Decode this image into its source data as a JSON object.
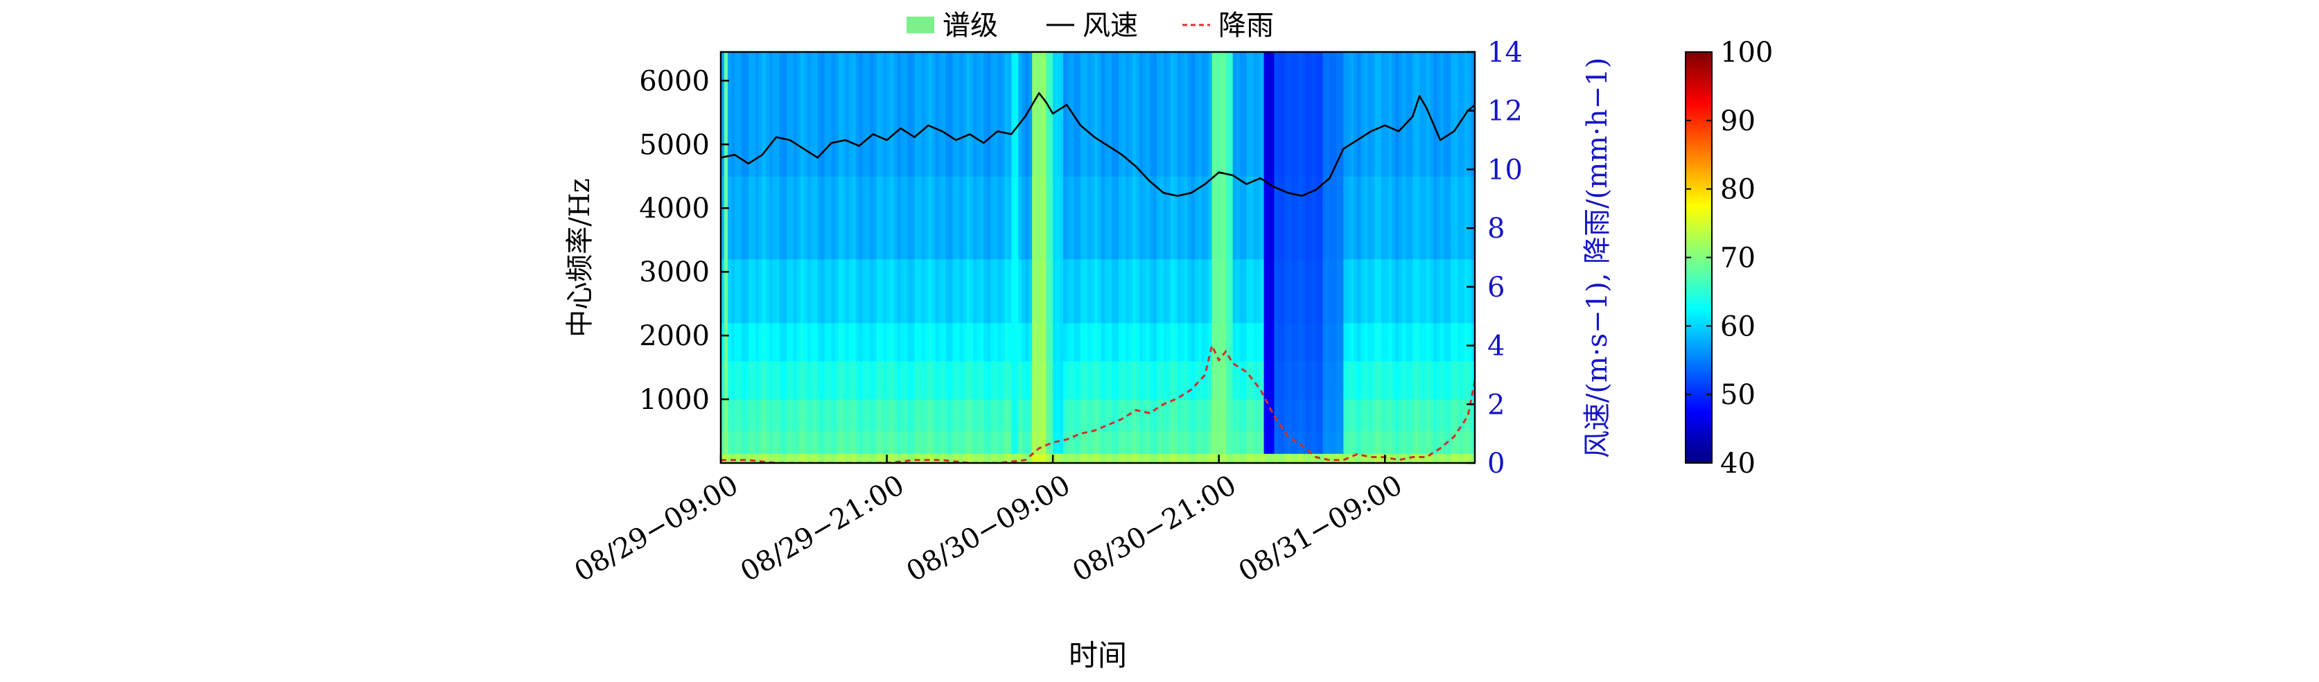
{
  "chart_data": {
    "type": "heatmap",
    "title": "",
    "legend": {
      "placement": "top-center",
      "entries": [
        {
          "label": "谱级",
          "color": "#7CF08A",
          "kind": "patch"
        },
        {
          "label": "风速",
          "color": "#000000",
          "kind": "line"
        },
        {
          "label": "降雨",
          "color": "#E03030",
          "kind": "dashed-line"
        }
      ]
    },
    "xlabel": "时间",
    "ylabel_left": "中心频率/Hz",
    "ylabel_right": "风速/(m·s−1), 降雨/(mm·h−1)",
    "x_tick_labels": [
      "08/29−09:00",
      "08/29−21:00",
      "08/30−09:00",
      "08/30−21:00",
      "08/31−09:00"
    ],
    "x_range_hours": [
      0,
      54.5
    ],
    "y_left_ticks": [
      1000,
      2000,
      3000,
      4000,
      5000,
      6000
    ],
    "ylim_left": [
      0,
      6450
    ],
    "y_right_ticks": [
      0,
      2,
      4,
      6,
      8,
      10,
      12,
      14
    ],
    "ylim_right": [
      0,
      14
    ],
    "colorbar": {
      "ticks": [
        40,
        50,
        60,
        70,
        80,
        90,
        100
      ],
      "range": [
        40,
        100
      ],
      "colormap": "jet"
    },
    "heatmap": {
      "band_boundaries_hz": [
        0,
        150,
        500,
        1000,
        1600,
        2200,
        3200,
        4500,
        6450
      ],
      "base_levels_db": [
        72,
        67,
        66,
        64,
        62,
        60,
        58,
        57
      ],
      "events": [
        {
          "t_start": 0.2,
          "t_end": 0.5,
          "level_db": 70
        },
        {
          "t_start": 20.9,
          "t_end": 21.5,
          "level_db": 64
        },
        {
          "t_start": 22.4,
          "t_end": 23.4,
          "level_db": 73
        },
        {
          "t_start": 23.4,
          "t_end": 24.0,
          "level_db": 68
        },
        {
          "t_start": 24.0,
          "t_end": 24.8,
          "level_db": 62
        },
        {
          "t_start": 35.6,
          "t_end": 36.4,
          "level_db": 70
        },
        {
          "t_start": 36.4,
          "t_end": 36.9,
          "level_db": 68
        },
        {
          "t_start": 39.2,
          "t_end": 40.0,
          "level_db": 48
        },
        {
          "t_start": 40.0,
          "t_end": 43.5,
          "level_db": 54
        },
        {
          "t_start": 43.5,
          "t_end": 45.0,
          "level_db": 56
        }
      ]
    },
    "series": [
      {
        "name": "风速",
        "style": "solid",
        "color": "#000000",
        "x": [
          0,
          1,
          2,
          3,
          4,
          5,
          6,
          7,
          8,
          9,
          10,
          11,
          12,
          13,
          14,
          15,
          16,
          17,
          18,
          19,
          20,
          21,
          22,
          23,
          23.5,
          24,
          25,
          26,
          27,
          28,
          29,
          30,
          31,
          32,
          33,
          34,
          35,
          36,
          37,
          38,
          39,
          40,
          41,
          42,
          43,
          44,
          45,
          46,
          47,
          48,
          49,
          50,
          50.5,
          51,
          52,
          53,
          54,
          54.5
        ],
        "y": [
          10.4,
          10.5,
          10.2,
          10.5,
          11.1,
          11.0,
          10.7,
          10.4,
          10.9,
          11.0,
          10.8,
          11.2,
          11.0,
          11.4,
          11.1,
          11.5,
          11.3,
          11.0,
          11.2,
          10.9,
          11.3,
          11.2,
          11.8,
          12.6,
          12.3,
          11.9,
          12.2,
          11.5,
          11.1,
          10.8,
          10.5,
          10.1,
          9.6,
          9.2,
          9.1,
          9.2,
          9.5,
          9.9,
          9.8,
          9.5,
          9.7,
          9.4,
          9.2,
          9.1,
          9.3,
          9.7,
          10.7,
          11.0,
          11.3,
          11.5,
          11.3,
          11.8,
          12.5,
          12.1,
          11.0,
          11.3,
          12.0,
          12.2
        ]
      },
      {
        "name": "降雨",
        "style": "dashed",
        "color": "#D03030",
        "x": [
          0,
          2,
          4,
          6,
          8,
          10,
          12,
          14,
          16,
          18,
          20,
          22,
          23,
          24,
          25,
          26,
          27,
          28,
          29,
          30,
          31,
          32,
          33,
          34,
          35,
          35.5,
          36,
          36.5,
          37,
          38,
          39,
          40,
          41,
          42,
          43,
          44,
          45,
          46,
          47,
          48,
          49,
          50,
          51,
          52,
          53,
          54,
          54.5
        ],
        "y": [
          0.1,
          0.1,
          0.0,
          0.0,
          0.0,
          0.0,
          0.0,
          0.1,
          0.1,
          0.0,
          0.0,
          0.1,
          0.5,
          0.7,
          0.8,
          1.0,
          1.1,
          1.3,
          1.5,
          1.8,
          1.7,
          2.0,
          2.2,
          2.5,
          3.0,
          4.0,
          3.5,
          3.8,
          3.4,
          3.1,
          2.5,
          1.6,
          0.9,
          0.6,
          0.2,
          0.1,
          0.1,
          0.3,
          0.2,
          0.2,
          0.1,
          0.2,
          0.2,
          0.5,
          0.9,
          1.6,
          2.8
        ]
      }
    ]
  }
}
